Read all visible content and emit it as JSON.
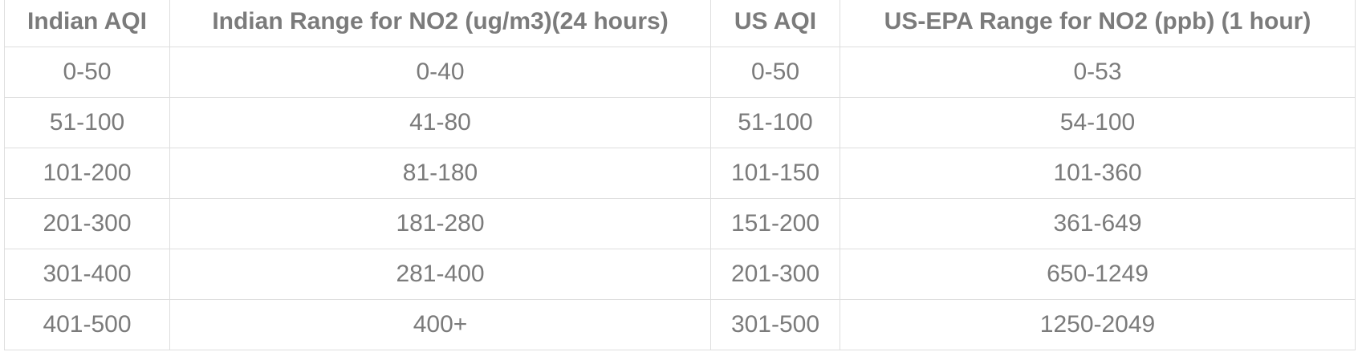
{
  "table": {
    "headers": [
      "Indian AQI",
      "Indian Range for NO2 (ug/m3)(24 hours)",
      "US AQI",
      "US-EPA Range for NO2 (ppb) (1 hour)"
    ],
    "rows": [
      [
        "0-50",
        "0-40",
        "0-50",
        "0-53"
      ],
      [
        "51-100",
        "41-80",
        "51-100",
        "54-100"
      ],
      [
        "101-200",
        "81-180",
        "101-150",
        "101-360"
      ],
      [
        "201-300",
        "181-280",
        "151-200",
        "361-649"
      ],
      [
        "301-400",
        "281-400",
        "201-300",
        "650-1249"
      ],
      [
        "401-500",
        "400+",
        "301-500",
        "1250-2049"
      ]
    ]
  },
  "colors": {
    "text": "#7b7b7b",
    "border": "#dedede",
    "background": "#ffffff"
  }
}
